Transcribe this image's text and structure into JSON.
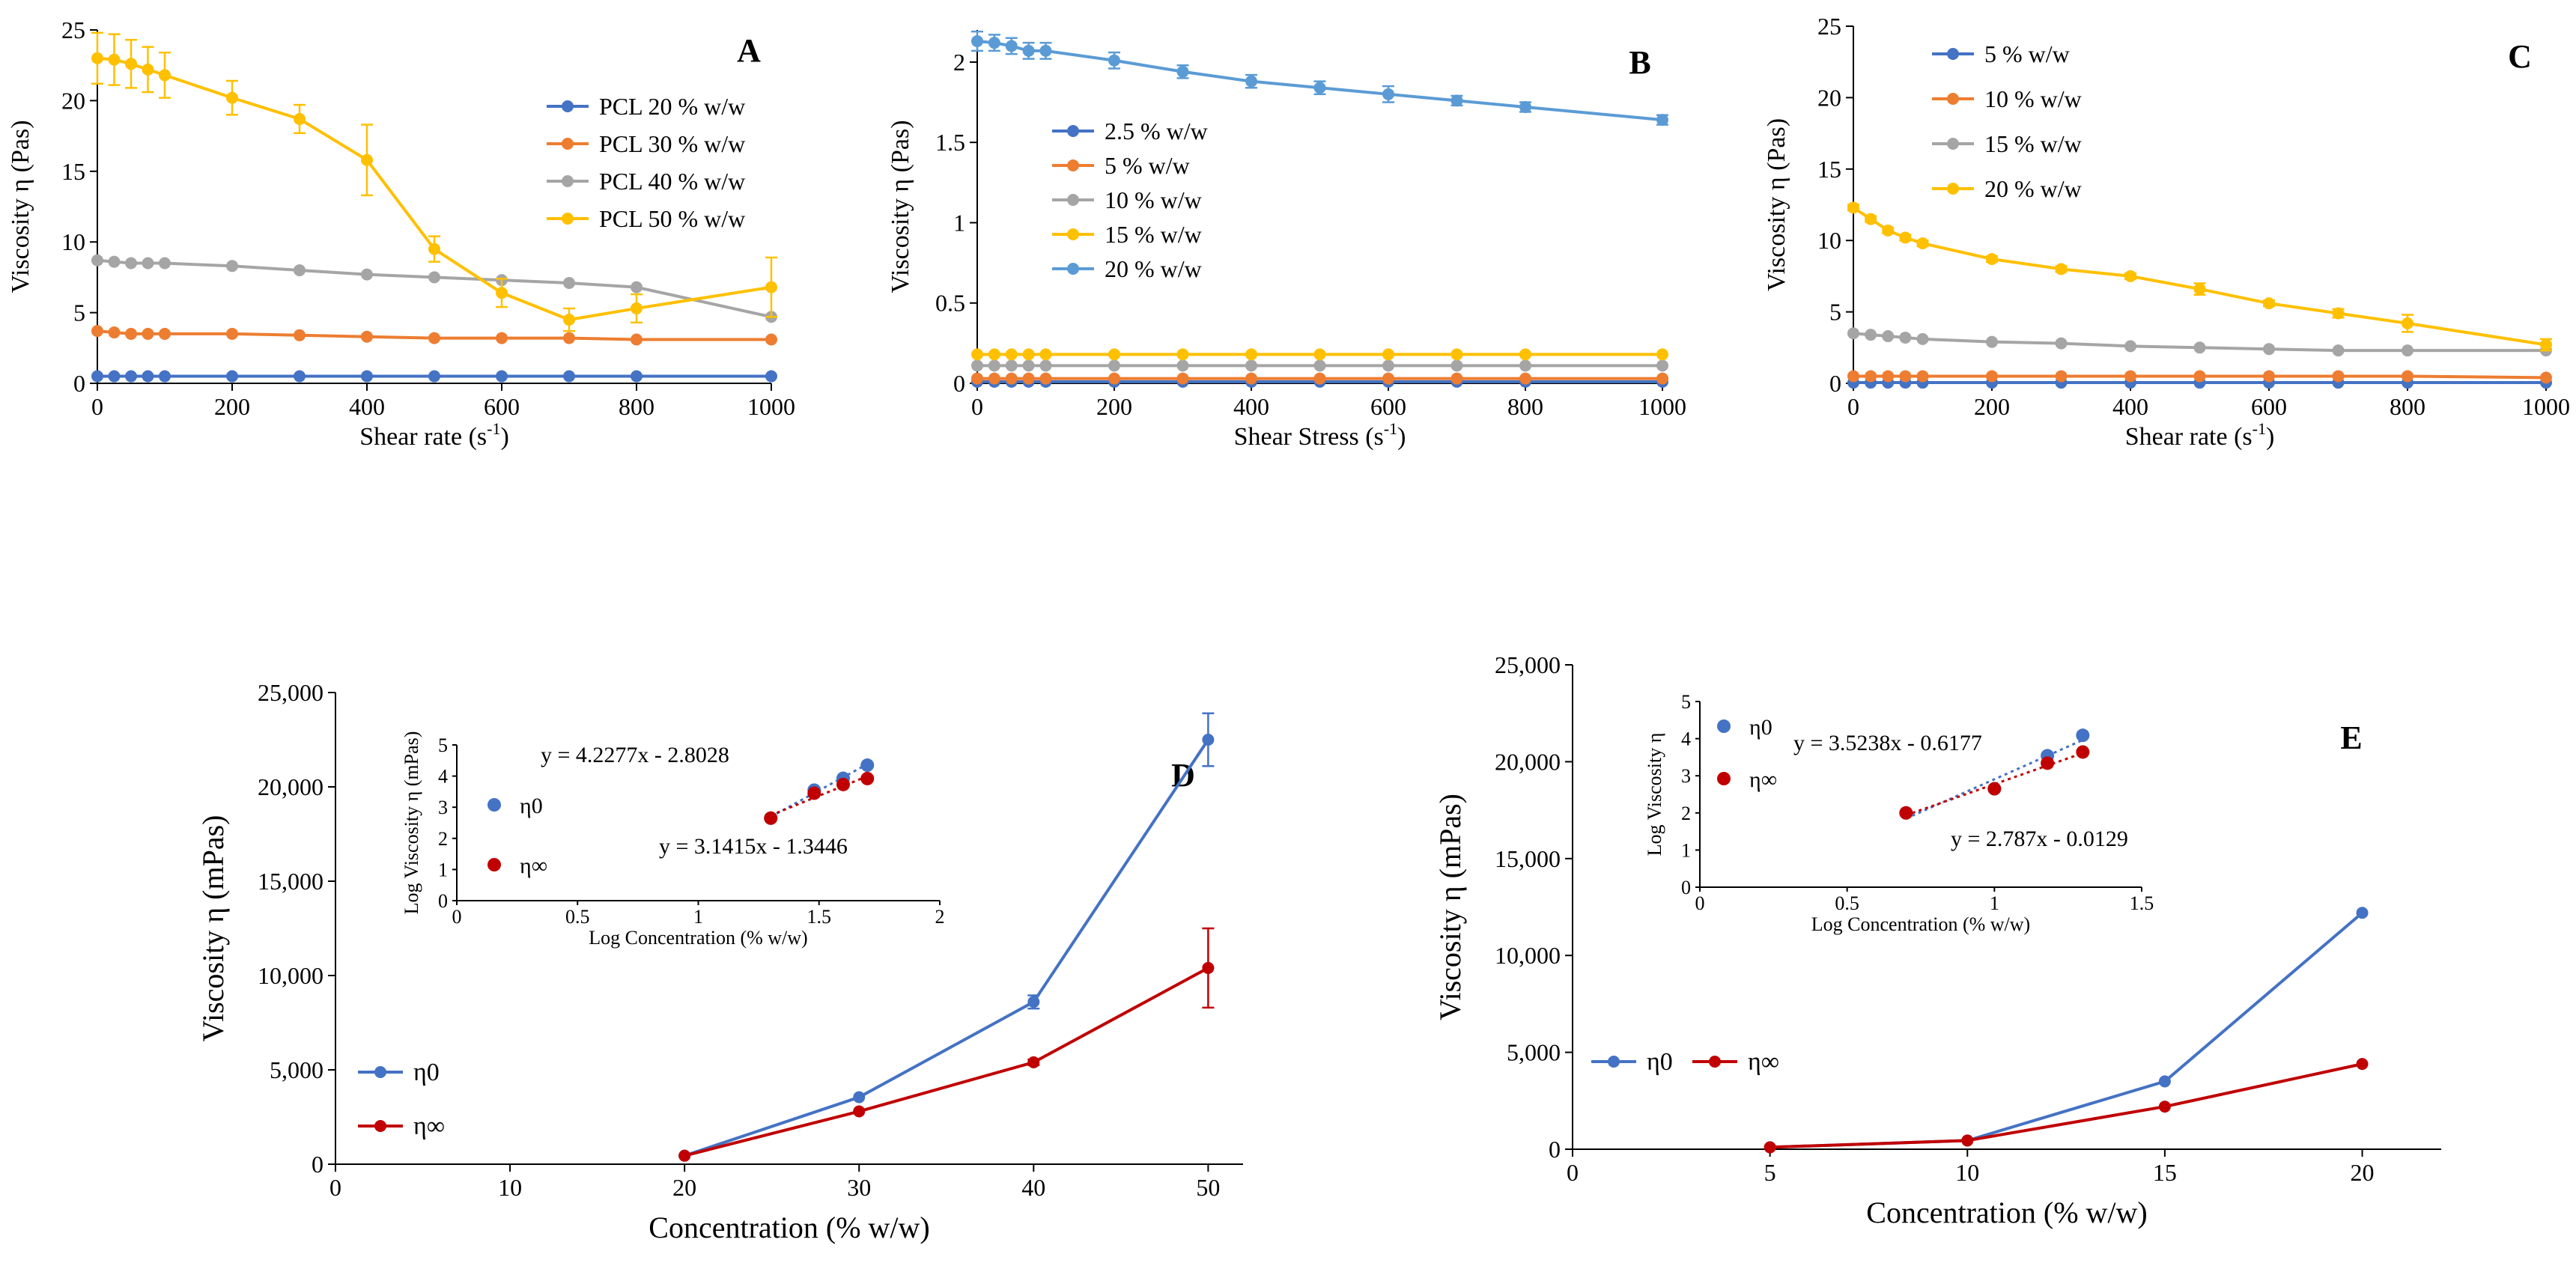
{
  "chart_data": [
    {
      "id": "A",
      "type": "line",
      "panel_label": "A",
      "xlabel": "Shear rate (s",
      "xlabel_sup": "-1",
      "xlabel_end": ")",
      "ylabel": "Viscosity η  (Pas)",
      "xlim": [
        0,
        1000
      ],
      "ylim": [
        0,
        25
      ],
      "xticks": [
        0,
        200,
        400,
        600,
        800,
        1000
      ],
      "yticks": [
        0,
        5,
        10,
        15,
        20,
        25
      ],
      "legend_position": "top-right",
      "series": [
        {
          "name": "PCL 20 % w/w",
          "color": "#4472C4",
          "x": [
            0,
            25,
            50,
            75,
            100,
            200,
            300,
            400,
            500,
            600,
            700,
            800,
            1000
          ],
          "y": [
            0.5,
            0.5,
            0.5,
            0.5,
            0.5,
            0.5,
            0.5,
            0.5,
            0.5,
            0.5,
            0.5,
            0.5,
            0.5
          ]
        },
        {
          "name": "PCL 30 % w/w",
          "color": "#ED7D31",
          "x": [
            0,
            25,
            50,
            75,
            100,
            200,
            300,
            400,
            500,
            600,
            700,
            800,
            1000
          ],
          "y": [
            3.7,
            3.6,
            3.5,
            3.5,
            3.5,
            3.5,
            3.4,
            3.3,
            3.2,
            3.2,
            3.2,
            3.1,
            3.1
          ]
        },
        {
          "name": "PCL 40 % w/w",
          "color": "#A5A5A5",
          "x": [
            0,
            25,
            50,
            75,
            100,
            200,
            300,
            400,
            500,
            600,
            700,
            800,
            1000
          ],
          "y": [
            8.7,
            8.6,
            8.5,
            8.5,
            8.5,
            8.3,
            8.0,
            7.7,
            7.5,
            7.3,
            7.1,
            6.8,
            4.7
          ]
        },
        {
          "name": "PCL 50 % w/w",
          "color": "#FFC000",
          "x": [
            0,
            25,
            50,
            75,
            100,
            200,
            300,
            400,
            500,
            600,
            700,
            800,
            1000
          ],
          "y": [
            23.0,
            22.9,
            22.6,
            22.2,
            21.8,
            20.2,
            18.7,
            15.8,
            9.5,
            6.4,
            4.5,
            5.3,
            6.8
          ],
          "err": [
            1.8,
            1.8,
            1.7,
            1.6,
            1.6,
            1.2,
            1.0,
            2.5,
            0.9,
            1.0,
            0.8,
            1.0,
            2.1
          ]
        }
      ]
    },
    {
      "id": "B",
      "type": "line",
      "panel_label": "B",
      "xlabel": "Shear Stress (s",
      "xlabel_sup": "-1",
      "xlabel_end": ")",
      "ylabel": "Viscosity η (Pas)",
      "xlim": [
        0,
        1000
      ],
      "ylim": [
        0,
        2.2
      ],
      "xticks": [
        0,
        200,
        400,
        600,
        800,
        1000
      ],
      "yticks": [
        0,
        0.5,
        1,
        1.5,
        2
      ],
      "ytick_labels": [
        "0",
        "0.5",
        "1",
        "1.5",
        "2"
      ],
      "legend_position": "middle-left",
      "series": [
        {
          "name": "2.5 % w/w",
          "color": "#4472C4",
          "x": [
            0,
            25,
            50,
            75,
            100,
            200,
            300,
            400,
            500,
            600,
            700,
            800,
            1000
          ],
          "y": [
            0.01,
            0.01,
            0.01,
            0.01,
            0.01,
            0.01,
            0.01,
            0.01,
            0.01,
            0.01,
            0.01,
            0.01,
            0.01
          ]
        },
        {
          "name": "5 % w/w",
          "color": "#ED7D31",
          "x": [
            0,
            25,
            50,
            75,
            100,
            200,
            300,
            400,
            500,
            600,
            700,
            800,
            1000
          ],
          "y": [
            0.03,
            0.03,
            0.03,
            0.03,
            0.03,
            0.03,
            0.03,
            0.03,
            0.03,
            0.03,
            0.03,
            0.03,
            0.03
          ]
        },
        {
          "name": "10 % w/w",
          "color": "#A5A5A5",
          "x": [
            0,
            25,
            50,
            75,
            100,
            200,
            300,
            400,
            500,
            600,
            700,
            800,
            1000
          ],
          "y": [
            0.11,
            0.11,
            0.11,
            0.11,
            0.11,
            0.11,
            0.11,
            0.11,
            0.11,
            0.11,
            0.11,
            0.11,
            0.11
          ]
        },
        {
          "name": "15 % w/w",
          "color": "#FFC000",
          "x": [
            0,
            25,
            50,
            75,
            100,
            200,
            300,
            400,
            500,
            600,
            700,
            800,
            1000
          ],
          "y": [
            0.18,
            0.18,
            0.18,
            0.18,
            0.18,
            0.18,
            0.18,
            0.18,
            0.18,
            0.18,
            0.18,
            0.18,
            0.18
          ]
        },
        {
          "name": "20 % w/w",
          "color": "#5B9BD5",
          "x": [
            0,
            25,
            50,
            75,
            100,
            200,
            300,
            400,
            500,
            600,
            700,
            800,
            1000
          ],
          "y": [
            2.13,
            2.12,
            2.1,
            2.07,
            2.07,
            2.01,
            1.94,
            1.88,
            1.84,
            1.8,
            1.76,
            1.72,
            1.64
          ],
          "err": [
            0.06,
            0.05,
            0.05,
            0.05,
            0.05,
            0.05,
            0.04,
            0.04,
            0.04,
            0.05,
            0.03,
            0.03,
            0.03
          ]
        }
      ]
    },
    {
      "id": "C",
      "type": "line",
      "panel_label": "C",
      "xlabel": "Shear rate (s",
      "xlabel_sup": "-1",
      "xlabel_end": ")",
      "ylabel": "Viscosity η (Pas)",
      "xlim": [
        0,
        1000
      ],
      "ylim": [
        0,
        25
      ],
      "xticks": [
        0,
        200,
        400,
        600,
        800,
        1000
      ],
      "yticks": [
        0,
        5,
        10,
        15,
        20,
        25
      ],
      "legend_position": "top-left",
      "series": [
        {
          "name": "5 % w/w",
          "color": "#4472C4",
          "x": [
            0,
            25,
            50,
            75,
            100,
            200,
            300,
            400,
            500,
            600,
            700,
            800,
            1000
          ],
          "y": [
            0.05,
            0.05,
            0.05,
            0.05,
            0.05,
            0.05,
            0.05,
            0.05,
            0.05,
            0.05,
            0.05,
            0.05,
            0.05
          ]
        },
        {
          "name": "10 % w/w",
          "color": "#ED7D31",
          "x": [
            0,
            25,
            50,
            75,
            100,
            200,
            300,
            400,
            500,
            600,
            700,
            800,
            1000
          ],
          "y": [
            0.5,
            0.5,
            0.5,
            0.5,
            0.5,
            0.5,
            0.5,
            0.5,
            0.5,
            0.5,
            0.5,
            0.5,
            0.4
          ]
        },
        {
          "name": "15 % w/w",
          "color": "#A5A5A5",
          "x": [
            0,
            25,
            50,
            75,
            100,
            200,
            300,
            400,
            500,
            600,
            700,
            800,
            1000
          ],
          "y": [
            3.5,
            3.4,
            3.3,
            3.2,
            3.1,
            2.9,
            2.8,
            2.6,
            2.5,
            2.4,
            2.3,
            2.3,
            2.3
          ]
        },
        {
          "name": "20 % w/w",
          "color": "#FFC000",
          "x": [
            0,
            25,
            50,
            75,
            100,
            200,
            300,
            400,
            500,
            600,
            700,
            800,
            1000
          ],
          "y": [
            12.3,
            11.5,
            10.7,
            10.2,
            9.8,
            8.7,
            8.0,
            7.5,
            6.6,
            5.6,
            4.9,
            4.2,
            2.7
          ],
          "err": [
            0.2,
            0.2,
            0.2,
            0.2,
            0.2,
            0.2,
            0.2,
            0.2,
            0.4,
            0.2,
            0.3,
            0.6,
            0.4
          ]
        }
      ]
    },
    {
      "id": "D",
      "type": "line",
      "panel_label": "D",
      "xlabel": "Concentration (% w/w)",
      "ylabel": "Viscosity η (mPas)",
      "xlim": [
        0,
        52
      ],
      "ylim": [
        0,
        25000
      ],
      "xticks": [
        0,
        10,
        20,
        30,
        40,
        50
      ],
      "yticks": [
        0,
        5000,
        10000,
        15000,
        20000,
        25000
      ],
      "ytick_labels": [
        "0",
        "5,000",
        "10,000",
        "15,000",
        "20,000",
        "25,000"
      ],
      "legend_position": "bottom-left",
      "series": [
        {
          "name": "η0",
          "color": "#4472C4",
          "x": [
            20,
            30,
            40,
            50
          ],
          "y": [
            450,
            3550,
            8600,
            22500
          ],
          "err": [
            0,
            0,
            350,
            1400
          ]
        },
        {
          "name": "η∞",
          "color": "#C00000",
          "x": [
            20,
            30,
            40,
            50
          ],
          "y": [
            450,
            2800,
            5400,
            10400
          ],
          "err": [
            0,
            0,
            150,
            2100
          ]
        }
      ],
      "inset": {
        "type": "scatter",
        "xlabel": "Log Concentration (% w/w)",
        "ylabel": "Log Viscosity η (mPas)",
        "xlim": [
          0,
          2
        ],
        "ylim": [
          0,
          5
        ],
        "xticks": [
          0,
          0.5,
          1,
          1.5,
          2
        ],
        "xtick_labels": [
          "0",
          "0.5",
          "1",
          "1.5",
          "2"
        ],
        "yticks": [
          0,
          1,
          2,
          3,
          4,
          5
        ],
        "legend_position": "middle-left",
        "series": [
          {
            "name": "η0",
            "color": "#4472C4",
            "x": [
              1.3,
              1.48,
              1.6,
              1.7
            ],
            "y": [
              2.65,
              3.55,
              3.93,
              4.35
            ],
            "fit": {
              "slope": 4.2277,
              "intercept": -2.8028,
              "label": "y = 4.2277x - 2.8028"
            }
          },
          {
            "name": "η∞",
            "color": "#C00000",
            "x": [
              1.3,
              1.48,
              1.6,
              1.7
            ],
            "y": [
              2.65,
              3.45,
              3.73,
              3.92
            ],
            "fit": {
              "slope": 3.1415,
              "intercept": -1.3446,
              "label": "y = 3.1415x - 1.3446"
            }
          }
        ]
      }
    },
    {
      "id": "E",
      "type": "line",
      "panel_label": "E",
      "xlabel": "Concentration  (% w/w)",
      "ylabel": "Viscosity  η (mPas)",
      "xlim": [
        0,
        22
      ],
      "ylim": [
        0,
        25000
      ],
      "xticks": [
        0,
        5,
        10,
        15,
        20
      ],
      "yticks": [
        0,
        5000,
        10000,
        15000,
        20000,
        25000
      ],
      "ytick_labels": [
        "0",
        "5,000",
        "10,000",
        "15,000",
        "20,000",
        "25,000"
      ],
      "legend_position": "bottom-left",
      "series": [
        {
          "name": "η0",
          "color": "#4472C4",
          "x": [
            5,
            10,
            15,
            20
          ],
          "y": [
            100,
            450,
            3500,
            12200
          ]
        },
        {
          "name": "η∞",
          "color": "#C00000",
          "x": [
            5,
            10,
            15,
            20
          ],
          "y": [
            100,
            450,
            2200,
            4400
          ]
        }
      ],
      "inset": {
        "type": "scatter",
        "xlabel": "Log Concentration (% w/w)",
        "ylabel": "Log Viscosity η",
        "xlim": [
          0,
          1.5
        ],
        "ylim": [
          0,
          5
        ],
        "xticks": [
          0,
          0.5,
          1,
          1.5
        ],
        "xtick_labels": [
          "0",
          "0.5",
          "1",
          "1.5"
        ],
        "yticks": [
          0,
          1,
          2,
          3,
          4,
          5
        ],
        "legend_position": "top-left",
        "series": [
          {
            "name": "η0",
            "color": "#4472C4",
            "x": [
              0.7,
              1.0,
              1.18,
              1.3
            ],
            "y": [
              2.0,
              2.65,
              3.54,
              4.09
            ],
            "fit": {
              "slope": 3.5238,
              "intercept": -0.6177,
              "label": "y = 3.5238x - 0.6177"
            }
          },
          {
            "name": "η∞",
            "color": "#C00000",
            "x": [
              0.7,
              1.0,
              1.18,
              1.3
            ],
            "y": [
              2.0,
              2.65,
              3.34,
              3.64
            ],
            "fit": {
              "slope": 2.787,
              "intercept": -0.0129,
              "label": "y = 2.787x - 0.0129"
            }
          }
        ]
      }
    }
  ]
}
